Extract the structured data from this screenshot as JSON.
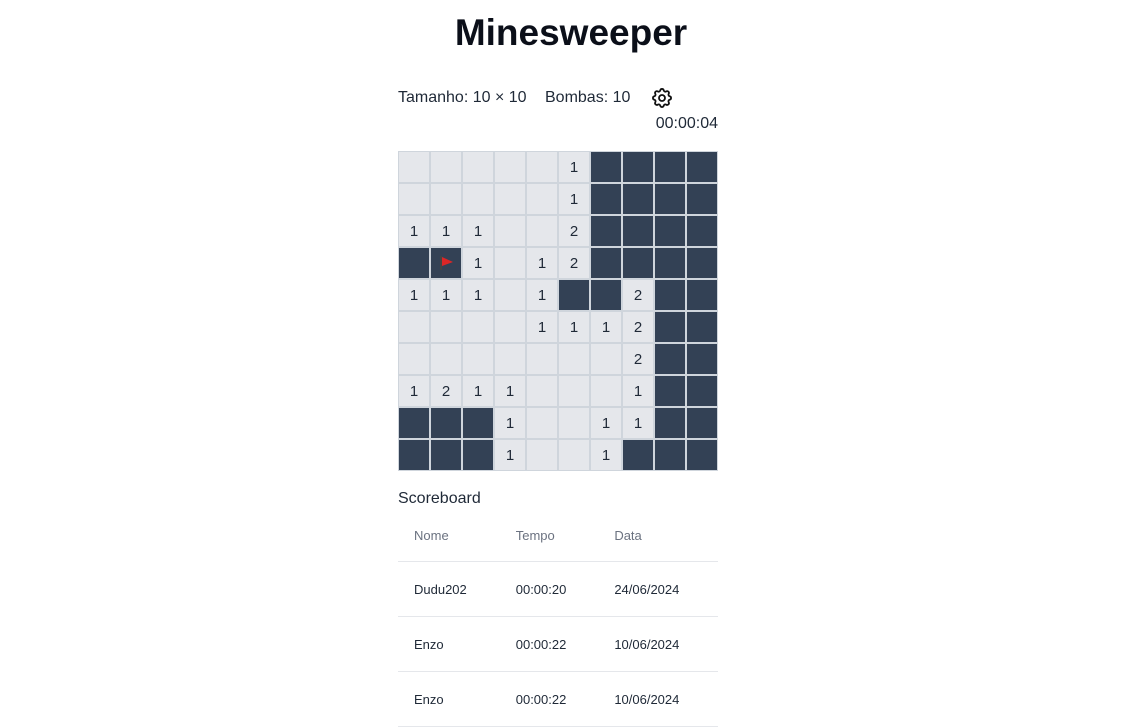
{
  "title": "Minesweeper",
  "info": {
    "size": "Tamanho: 10 × 10",
    "bombs": "Bombas: 10",
    "settings_icon": "gear-icon",
    "timer": "00:00:04"
  },
  "board": {
    "legend": {
      "E": "revealed-empty",
      "D": "hidden",
      "F": "flagged"
    },
    "rows": [
      [
        "E",
        "E",
        "E",
        "E",
        "E",
        "1",
        "D",
        "D",
        "D",
        "D"
      ],
      [
        "E",
        "E",
        "E",
        "E",
        "E",
        "1",
        "D",
        "D",
        "D",
        "D"
      ],
      [
        "1",
        "1",
        "1",
        "E",
        "E",
        "2",
        "D",
        "D",
        "D",
        "D"
      ],
      [
        "D",
        "F",
        "1",
        "E",
        "1",
        "2",
        "D",
        "D",
        "D",
        "D"
      ],
      [
        "1",
        "1",
        "1",
        "E",
        "1",
        "D",
        "D",
        "2",
        "D",
        "D"
      ],
      [
        "E",
        "E",
        "E",
        "E",
        "1",
        "1",
        "1",
        "2",
        "D",
        "D"
      ],
      [
        "E",
        "E",
        "E",
        "E",
        "E",
        "E",
        "E",
        "2",
        "D",
        "D"
      ],
      [
        "1",
        "2",
        "1",
        "1",
        "E",
        "E",
        "E",
        "1",
        "D",
        "D"
      ],
      [
        "D",
        "D",
        "D",
        "1",
        "E",
        "E",
        "1",
        "1",
        "D",
        "D"
      ],
      [
        "D",
        "D",
        "D",
        "1",
        "E",
        "E",
        "1",
        "D",
        "D",
        "D"
      ]
    ],
    "colors": {
      "revealed": "#e5e7eb",
      "hidden": "#334155",
      "flag": "#dc2626"
    }
  },
  "scoreboard": {
    "title": "Scoreboard",
    "headers": [
      "Nome",
      "Tempo",
      "Data"
    ],
    "rows": [
      [
        "Dudu202",
        "00:00:20",
        "24/06/2024"
      ],
      [
        "Enzo",
        "00:00:22",
        "10/06/2024"
      ],
      [
        "Enzo",
        "00:00:22",
        "10/06/2024"
      ]
    ]
  }
}
